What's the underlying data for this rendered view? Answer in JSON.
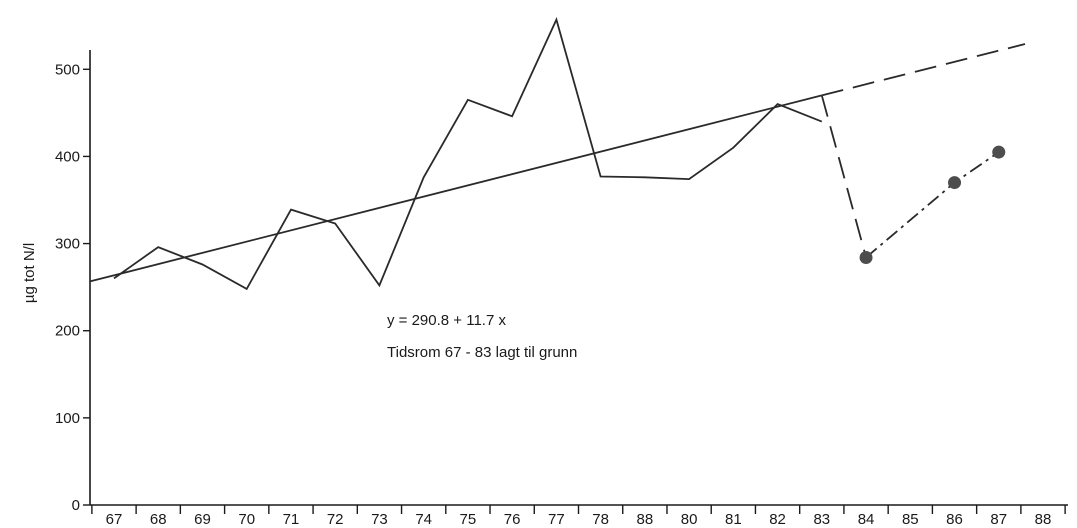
{
  "chart_data": {
    "type": "line",
    "title": "",
    "xlabel": "",
    "ylabel": "µg tot N/l",
    "categories": [
      "67",
      "68",
      "69",
      "70",
      "71",
      "72",
      "73",
      "74",
      "75",
      "76",
      "77",
      "78",
      "88",
      "80",
      "81",
      "82",
      "83",
      "84",
      "85",
      "86",
      "87",
      "88"
    ],
    "yticks": [
      "0",
      "100",
      "200",
      "300",
      "400",
      "500"
    ],
    "ylim": [
      0,
      560
    ],
    "grid": false,
    "series": [
      {
        "style": "solid",
        "x": [
          "67",
          "68",
          "69",
          "70",
          "71",
          "72",
          "73",
          "74",
          "75",
          "76",
          "77",
          "78",
          "88",
          "80",
          "81",
          "82",
          "83"
        ],
        "values": [
          260,
          296,
          276,
          248,
          339,
          323,
          252,
          376,
          465,
          446,
          557,
          377,
          376,
          374,
          410,
          460,
          440
        ]
      },
      {
        "style": "dash-dot-markers",
        "x": [
          "84",
          "86",
          "87"
        ],
        "values": [
          284,
          370,
          405
        ]
      }
    ],
    "trendline": {
      "equation_text": "y = 290.8 + 11.7 x",
      "period_text": "Tidsrom 67 - 83 lagt til grunn",
      "solid_from": [
        "67",
        260
      ],
      "solid_to": [
        "83",
        470
      ],
      "dashed_to": [
        "88",
        529
      ],
      "connector_from": [
        "83",
        470
      ],
      "connector_to": [
        "84",
        284
      ]
    },
    "colors": {
      "line": "#2a2a2a",
      "marker": "#4d4d4d",
      "axis": "#1a1a1a"
    }
  }
}
